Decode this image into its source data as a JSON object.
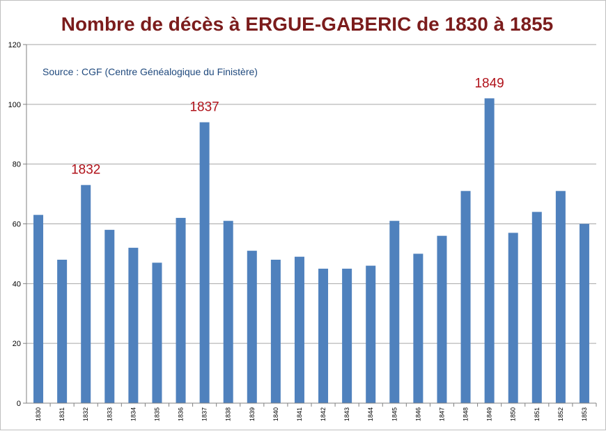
{
  "chart_data": {
    "type": "bar",
    "title": "Nombre de décès à ERGUE-GABERIC de 1830 à 1855",
    "annotation_source": "Source : CGF (Centre Généalogique du Finistère)",
    "categories": [
      "1830",
      "1831",
      "1832",
      "1833",
      "1834",
      "1835",
      "1836",
      "1837",
      "1838",
      "1839",
      "1840",
      "1841",
      "1842",
      "1843",
      "1844",
      "1845",
      "1846",
      "1847",
      "1848",
      "1849",
      "1850",
      "1851",
      "1852",
      "1853"
    ],
    "values": [
      63,
      48,
      73,
      58,
      52,
      47,
      62,
      94,
      61,
      51,
      48,
      49,
      45,
      45,
      46,
      61,
      50,
      56,
      71,
      102,
      57,
      64,
      71,
      60
    ],
    "ylim": [
      0,
      120
    ],
    "yticks": [
      0,
      20,
      40,
      60,
      80,
      100,
      120
    ],
    "grid": "horizontal",
    "bar_color": "#4f81bd",
    "annotations": [
      {
        "category": "1832",
        "text": "1832"
      },
      {
        "category": "1837",
        "text": "1837"
      },
      {
        "category": "1849",
        "text": "1849"
      }
    ],
    "colors": {
      "title": "#7b1c1c",
      "source": "#1f497d",
      "annotation": "#b0121a",
      "grid": "#a6a6a6"
    }
  }
}
